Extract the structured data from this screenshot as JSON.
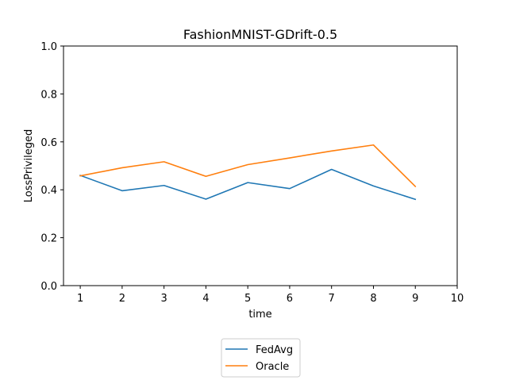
{
  "chart_data": {
    "type": "line",
    "title": "FashionMNIST-GDrift-0.5",
    "xlabel": "time",
    "ylabel": "LossPrivileged",
    "xlim": [
      0.6,
      10
    ],
    "ylim": [
      0,
      1
    ],
    "xticks": [
      1,
      2,
      3,
      4,
      5,
      6,
      7,
      8,
      9,
      10
    ],
    "yticks": [
      0.0,
      0.2,
      0.4,
      0.6,
      0.8,
      1.0
    ],
    "ytick_labels": [
      "0.0",
      "0.2",
      "0.4",
      "0.6",
      "0.8",
      "1.0"
    ],
    "grid": false,
    "legend_position": "below-center",
    "x": [
      1,
      2,
      3,
      4,
      5,
      6,
      7,
      8,
      9
    ],
    "series": [
      {
        "name": "FedAvg",
        "color": "#1f77b4",
        "values": [
          0.46,
          0.396,
          0.418,
          0.361,
          0.43,
          0.405,
          0.485,
          0.416,
          0.36
        ]
      },
      {
        "name": "Oracle",
        "color": "#ff7f0e",
        "values": [
          0.458,
          0.492,
          0.517,
          0.456,
          0.505,
          0.533,
          0.562,
          0.587,
          0.414
        ]
      }
    ]
  }
}
